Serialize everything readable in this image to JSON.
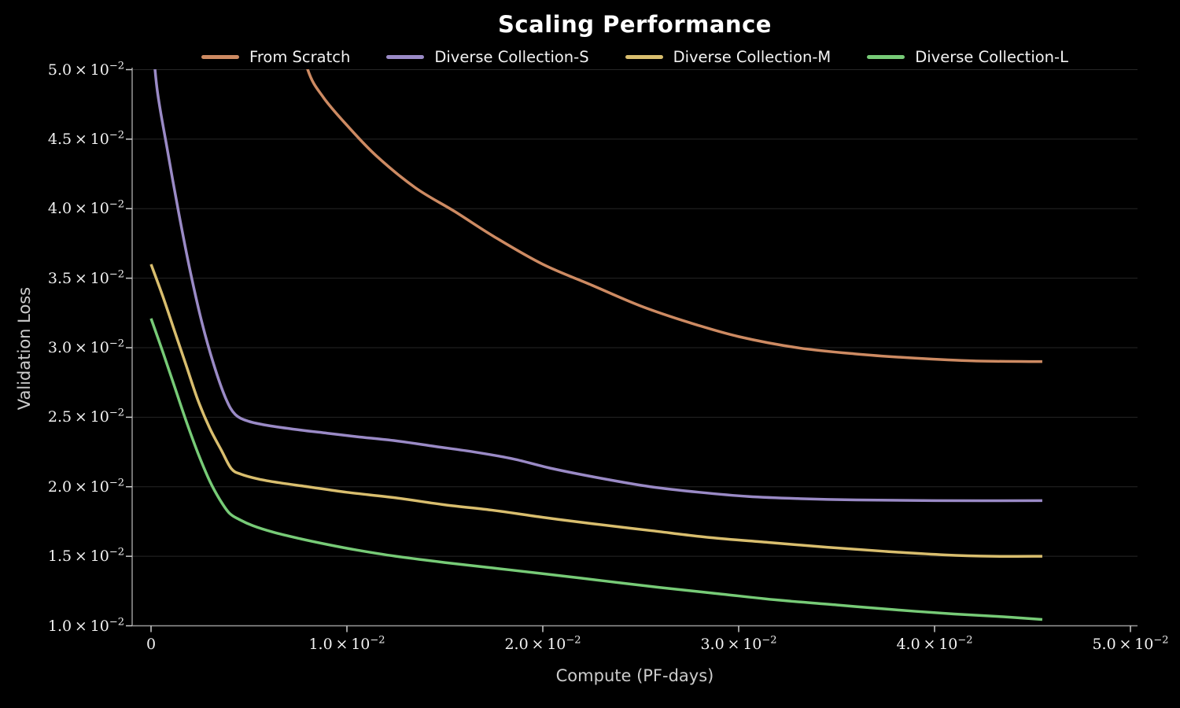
{
  "title": "Scaling Performance",
  "axes": {
    "x_label": "Compute (PF-days)",
    "y_label": "Validation Loss",
    "x_ticks": [
      {
        "value": 0,
        "coef": "0",
        "exp": null
      },
      {
        "value": 0.01,
        "coef": "1.0",
        "exp": "−2"
      },
      {
        "value": 0.02,
        "coef": "2.0",
        "exp": "−2"
      },
      {
        "value": 0.03,
        "coef": "3.0",
        "exp": "−2"
      },
      {
        "value": 0.04,
        "coef": "4.0",
        "exp": "−2"
      },
      {
        "value": 0.05,
        "coef": "5.0",
        "exp": "−2"
      }
    ],
    "y_ticks": [
      {
        "value": 0.05,
        "coef": "5.0",
        "exp": "−2"
      },
      {
        "value": 0.045,
        "coef": "4.5",
        "exp": "−2"
      },
      {
        "value": 0.04,
        "coef": "4.0",
        "exp": "−2"
      },
      {
        "value": 0.035,
        "coef": "3.5",
        "exp": "−2"
      },
      {
        "value": 0.03,
        "coef": "3.0",
        "exp": "−2"
      },
      {
        "value": 0.025,
        "coef": "2.5",
        "exp": "−2"
      },
      {
        "value": 0.02,
        "coef": "2.0",
        "exp": "−2"
      },
      {
        "value": 0.015,
        "coef": "1.5",
        "exp": "−2"
      },
      {
        "value": 0.01,
        "coef": "1.0",
        "exp": "−2"
      }
    ]
  },
  "legend": [
    {
      "label": "From Scratch",
      "color": "#cd8a62"
    },
    {
      "label": "Diverse Collection-S",
      "color": "#9a8ac6"
    },
    {
      "label": "Diverse Collection-M",
      "color": "#d9be6e"
    },
    {
      "label": "Diverse Collection-L",
      "color": "#77cb77"
    }
  ],
  "colors": {
    "background": "#000000",
    "grid": "#262626",
    "spine": "#999999",
    "tick": "#cccccc",
    "title": "#ffffff",
    "axis_label": "#cccccc",
    "tick_label": "#f2f2f2"
  },
  "chart_data": {
    "type": "line",
    "title": "Scaling Performance",
    "xlabel": "Compute (PF-days)",
    "ylabel": "Validation Loss",
    "xlim": [
      -0.001,
      0.0504
    ],
    "ylim": [
      0.01,
      0.05
    ],
    "grid": "horizontal-only",
    "legend_position": "top-center",
    "series": [
      {
        "name": "From Scratch",
        "color": "#cd8a62",
        "points": [
          [
            0.0072,
            0.0545
          ],
          [
            0.008,
            0.05
          ],
          [
            0.0088,
            0.048
          ],
          [
            0.01,
            0.046
          ],
          [
            0.0115,
            0.0438
          ],
          [
            0.0135,
            0.0415
          ],
          [
            0.0155,
            0.0398
          ],
          [
            0.0175,
            0.038
          ],
          [
            0.02,
            0.036
          ],
          [
            0.0225,
            0.0345
          ],
          [
            0.025,
            0.033
          ],
          [
            0.0275,
            0.0318
          ],
          [
            0.03,
            0.0308
          ],
          [
            0.033,
            0.03
          ],
          [
            0.036,
            0.02955
          ],
          [
            0.039,
            0.02925
          ],
          [
            0.042,
            0.02905
          ],
          [
            0.0455,
            0.029
          ]
        ]
      },
      {
        "name": "Diverse Collection-S",
        "color": "#9a8ac6",
        "points": [
          [
            0.0,
            0.0535
          ],
          [
            0.0003,
            0.0487
          ],
          [
            0.0008,
            0.0445
          ],
          [
            0.0014,
            0.0398
          ],
          [
            0.002,
            0.0355
          ],
          [
            0.0026,
            0.0318
          ],
          [
            0.0032,
            0.0288
          ],
          [
            0.0038,
            0.0264
          ],
          [
            0.0043,
            0.0252
          ],
          [
            0.005,
            0.0247
          ],
          [
            0.006,
            0.0244
          ],
          [
            0.0075,
            0.0241
          ],
          [
            0.009,
            0.02385
          ],
          [
            0.0105,
            0.0236
          ],
          [
            0.0125,
            0.0233
          ],
          [
            0.0145,
            0.0229
          ],
          [
            0.0165,
            0.0225
          ],
          [
            0.0185,
            0.022
          ],
          [
            0.0205,
            0.0213
          ],
          [
            0.023,
            0.0206
          ],
          [
            0.0255,
            0.02
          ],
          [
            0.028,
            0.0196
          ],
          [
            0.0305,
            0.0193
          ],
          [
            0.033,
            0.01915
          ],
          [
            0.036,
            0.01905
          ],
          [
            0.04,
            0.019
          ],
          [
            0.0455,
            0.019
          ]
        ]
      },
      {
        "name": "Diverse Collection-M",
        "color": "#d9be6e",
        "points": [
          [
            0.0,
            0.036
          ],
          [
            0.0006,
            0.0337
          ],
          [
            0.0012,
            0.0312
          ],
          [
            0.0018,
            0.0287
          ],
          [
            0.0024,
            0.0262
          ],
          [
            0.003,
            0.0242
          ],
          [
            0.0036,
            0.0226
          ],
          [
            0.0041,
            0.0213
          ],
          [
            0.0046,
            0.0209
          ],
          [
            0.0055,
            0.02055
          ],
          [
            0.0065,
            0.0203
          ],
          [
            0.008,
            0.02
          ],
          [
            0.01,
            0.0196
          ],
          [
            0.0125,
            0.0192
          ],
          [
            0.015,
            0.0187
          ],
          [
            0.0175,
            0.0183
          ],
          [
            0.02,
            0.0178
          ],
          [
            0.0225,
            0.01735
          ],
          [
            0.0255,
            0.01685
          ],
          [
            0.0285,
            0.01635
          ],
          [
            0.0315,
            0.016
          ],
          [
            0.0345,
            0.01565
          ],
          [
            0.0375,
            0.01535
          ],
          [
            0.0405,
            0.0151
          ],
          [
            0.043,
            0.015
          ],
          [
            0.0455,
            0.015
          ]
        ]
      },
      {
        "name": "Diverse Collection-L",
        "color": "#77cb77",
        "points": [
          [
            0.0,
            0.0321
          ],
          [
            0.0006,
            0.0297
          ],
          [
            0.0012,
            0.0272
          ],
          [
            0.0018,
            0.0247
          ],
          [
            0.0024,
            0.0224
          ],
          [
            0.003,
            0.0204
          ],
          [
            0.0035,
            0.0191
          ],
          [
            0.004,
            0.0181
          ],
          [
            0.0045,
            0.01765
          ],
          [
            0.0052,
            0.0172
          ],
          [
            0.0062,
            0.01675
          ],
          [
            0.0075,
            0.0163
          ],
          [
            0.009,
            0.01585
          ],
          [
            0.0105,
            0.01545
          ],
          [
            0.0125,
            0.015
          ],
          [
            0.015,
            0.01455
          ],
          [
            0.0175,
            0.01415
          ],
          [
            0.02,
            0.01375
          ],
          [
            0.023,
            0.01325
          ],
          [
            0.026,
            0.01275
          ],
          [
            0.029,
            0.0123
          ],
          [
            0.032,
            0.01185
          ],
          [
            0.035,
            0.0115
          ],
          [
            0.038,
            0.01115
          ],
          [
            0.041,
            0.01085
          ],
          [
            0.0435,
            0.01065
          ],
          [
            0.0455,
            0.01045
          ]
        ]
      }
    ]
  }
}
